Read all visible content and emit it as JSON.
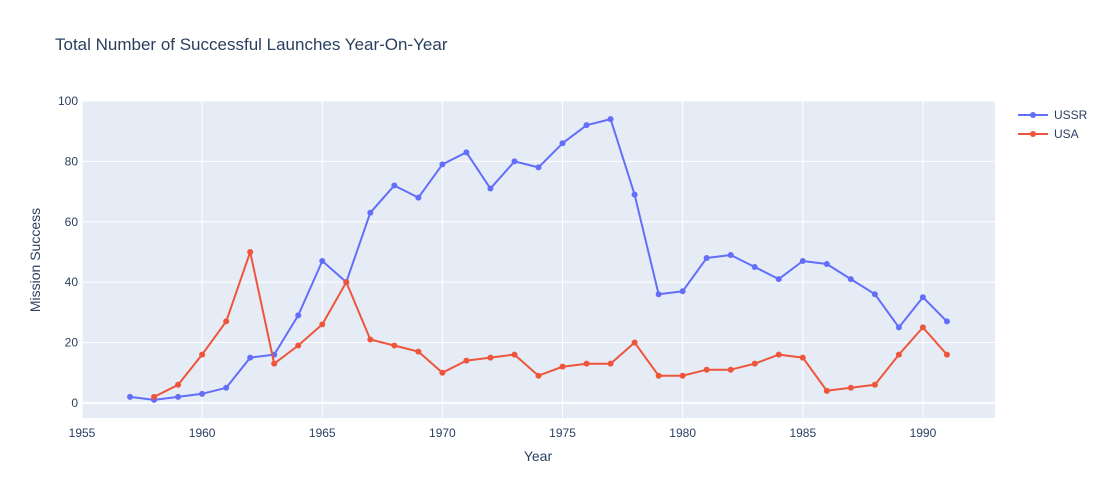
{
  "chart_data": {
    "type": "line",
    "title": "Total Number of Successful Launches Year-On-Year",
    "xlabel": "Year",
    "ylabel": "Mission Success",
    "xlim": [
      1955,
      1993
    ],
    "ylim": [
      -5,
      100
    ],
    "xticks": [
      1955,
      1960,
      1965,
      1970,
      1975,
      1980,
      1985,
      1990
    ],
    "yticks": [
      0,
      20,
      40,
      60,
      80,
      100
    ],
    "grid": true,
    "legend_position": "top-right",
    "colors": {
      "plot_bg": "#e5ecf6",
      "grid": "#ffffff"
    },
    "series": [
      {
        "name": "USSR",
        "color": "#636efa",
        "x": [
          1957,
          1958,
          1959,
          1960,
          1961,
          1962,
          1963,
          1964,
          1965,
          1966,
          1967,
          1968,
          1969,
          1970,
          1971,
          1972,
          1973,
          1974,
          1975,
          1976,
          1977,
          1978,
          1979,
          1980,
          1981,
          1982,
          1983,
          1984,
          1985,
          1986,
          1987,
          1988,
          1989,
          1990,
          1991
        ],
        "y": [
          2,
          1,
          2,
          3,
          5,
          15,
          16,
          29,
          47,
          40,
          63,
          72,
          68,
          79,
          83,
          71,
          80,
          78,
          86,
          92,
          94,
          69,
          36,
          37,
          48,
          49,
          45,
          41,
          47,
          46,
          41,
          36,
          25,
          35,
          27
        ]
      },
      {
        "name": "USA",
        "color": "#ef553b",
        "x": [
          1958,
          1959,
          1960,
          1961,
          1962,
          1963,
          1964,
          1965,
          1966,
          1967,
          1968,
          1969,
          1970,
          1971,
          1972,
          1973,
          1974,
          1975,
          1976,
          1977,
          1978,
          1979,
          1980,
          1981,
          1982,
          1983,
          1984,
          1985,
          1986,
          1987,
          1988,
          1989,
          1990,
          1991
        ],
        "y": [
          2,
          6,
          16,
          27,
          50,
          13,
          19,
          26,
          40,
          21,
          19,
          17,
          10,
          14,
          15,
          16,
          9,
          12,
          13,
          13,
          20,
          9,
          9,
          11,
          11,
          13,
          16,
          15,
          4,
          5,
          6,
          16,
          25,
          16
        ]
      }
    ]
  }
}
